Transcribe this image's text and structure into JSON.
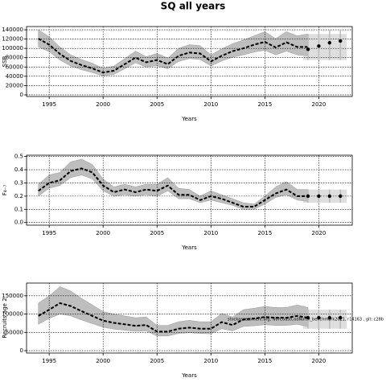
{
  "title": "SQ all years",
  "chart_data": [
    {
      "type": "line",
      "xlabel": "Years",
      "ylabel": "SSB",
      "xlim": [
        1992.9,
        2023.1
      ],
      "xticks": [
        1995,
        2000,
        2005,
        2010,
        2015,
        2020
      ],
      "ylim": [
        -3500,
        147000
      ],
      "yticks": [
        0,
        20000,
        40000,
        60000,
        80000,
        100000,
        120000,
        140000
      ],
      "grid": true,
      "color": "#000000",
      "band_color": "#bebebe",
      "x": [
        1994,
        1995,
        1996,
        1997,
        1998,
        1999,
        2000,
        2001,
        2002,
        2003,
        2004,
        2005,
        2006,
        2007,
        2008,
        2009,
        2010,
        2011,
        2012,
        2013,
        2014,
        2015,
        2016,
        2017,
        2018,
        2019
      ],
      "values": [
        121000,
        108000,
        88000,
        73000,
        64000,
        57000,
        48000,
        52000,
        66000,
        80000,
        70000,
        75000,
        66000,
        84000,
        91000,
        89000,
        72000,
        84000,
        94000,
        100000,
        108000,
        114000,
        102000,
        113000,
        103000,
        103000
      ],
      "lower": [
        103000,
        93000,
        75000,
        62000,
        54000,
        48000,
        41000,
        44000,
        56000,
        69000,
        60000,
        63000,
        56000,
        72000,
        78000,
        76000,
        62000,
        73000,
        81000,
        86000,
        92000,
        96000,
        86000,
        94000,
        86000,
        84000
      ],
      "upper": [
        140000,
        125000,
        103000,
        86000,
        76000,
        68000,
        57000,
        62000,
        78000,
        94000,
        82000,
        89000,
        79000,
        100000,
        108000,
        106000,
        86000,
        99000,
        110000,
        118000,
        127000,
        136000,
        121000,
        136000,
        127000,
        131000
      ],
      "forecast_x": [
        2019,
        2020,
        2021,
        2022
      ],
      "forecast_values": [
        98000,
        105000,
        112000,
        116000
      ],
      "forecast_lower": [
        75000,
        75000,
        75000,
        75000
      ],
      "forecast_upper": [
        131000,
        138000,
        140000,
        140000
      ]
    },
    {
      "type": "line",
      "xlabel": "Years",
      "ylabel": "F₄₋₇",
      "xlim": [
        1992.9,
        2023.1
      ],
      "xticks": [
        1995,
        2000,
        2005,
        2010,
        2015,
        2020
      ],
      "ylim": [
        -0.02,
        0.51
      ],
      "yticks": [
        {
          "value": 0,
          "label": "0.0"
        },
        0.1,
        0.2,
        0.3,
        0.4,
        0.5
      ],
      "grid": true,
      "color": "#000000",
      "band_color": "#bebebe",
      "x": [
        1994,
        1995,
        1996,
        1997,
        1998,
        1999,
        2000,
        2001,
        2002,
        2003,
        2004,
        2005,
        2006,
        2007,
        2008,
        2009,
        2010,
        2011,
        2012,
        2013,
        2014,
        2015,
        2016,
        2017,
        2018,
        2019
      ],
      "values": [
        0.24,
        0.3,
        0.32,
        0.39,
        0.41,
        0.38,
        0.28,
        0.23,
        0.25,
        0.23,
        0.25,
        0.24,
        0.28,
        0.21,
        0.21,
        0.17,
        0.2,
        0.18,
        0.15,
        0.12,
        0.12,
        0.17,
        0.22,
        0.25,
        0.2,
        0.2
      ],
      "lower": [
        0.2,
        0.26,
        0.28,
        0.34,
        0.36,
        0.33,
        0.24,
        0.2,
        0.21,
        0.2,
        0.21,
        0.2,
        0.24,
        0.18,
        0.18,
        0.15,
        0.17,
        0.15,
        0.13,
        0.1,
        0.1,
        0.14,
        0.19,
        0.21,
        0.17,
        0.16
      ],
      "upper": [
        0.29,
        0.36,
        0.38,
        0.46,
        0.48,
        0.44,
        0.33,
        0.27,
        0.29,
        0.27,
        0.29,
        0.29,
        0.34,
        0.26,
        0.25,
        0.2,
        0.24,
        0.21,
        0.18,
        0.15,
        0.14,
        0.2,
        0.27,
        0.31,
        0.25,
        0.25
      ],
      "forecast_x": [
        2019,
        2020,
        2021,
        2022
      ],
      "forecast_values": [
        0.2,
        0.2,
        0.2,
        0.2
      ],
      "forecast_lower": [
        0.15,
        0.15,
        0.15,
        0.15
      ],
      "forecast_upper": [
        0.25,
        0.25,
        0.25,
        0.25
      ]
    },
    {
      "type": "line",
      "xlabel": "Years",
      "ylabel": "Recruits age 2",
      "annotation": "stockassessment.org, NorCoastCodNorth_benchmark2021, r14163 , git: c28b",
      "xlim": [
        1992.9,
        2023.1
      ],
      "xticks": [
        1995,
        2000,
        2005,
        2010,
        2015,
        2020
      ],
      "ylim": [
        -6500,
        184800
      ],
      "yticks": [
        0,
        50000,
        100000,
        150000
      ],
      "grid": true,
      "color": "#000000",
      "band_color": "#bebebe",
      "x": [
        1994,
        1995,
        1996,
        1997,
        1998,
        1999,
        2000,
        2001,
        2002,
        2003,
        2004,
        2005,
        2006,
        2007,
        2008,
        2009,
        2010,
        2011,
        2012,
        2013,
        2014,
        2015,
        2016,
        2017,
        2018,
        2019
      ],
      "values": [
        95000,
        112000,
        130000,
        122000,
        108000,
        95000,
        82000,
        76000,
        72000,
        68000,
        70000,
        52000,
        52000,
        60000,
        63000,
        60000,
        60000,
        78000,
        70000,
        85000,
        88000,
        92000,
        90000,
        90000,
        95000,
        90000
      ],
      "lower": [
        72000,
        88000,
        100000,
        95000,
        84000,
        74000,
        64000,
        59000,
        56000,
        53000,
        54000,
        40000,
        40000,
        47000,
        49000,
        47000,
        46000,
        60000,
        54000,
        66000,
        68000,
        71000,
        69000,
        69000,
        72000,
        66000
      ],
      "upper": [
        130000,
        150000,
        175000,
        163000,
        143000,
        125000,
        107000,
        100000,
        95000,
        90000,
        92000,
        69000,
        69000,
        79000,
        83000,
        79000,
        79000,
        102000,
        92000,
        112000,
        116000,
        121000,
        118000,
        118000,
        125000,
        118000
      ],
      "forecast_x": [
        2019,
        2020,
        2021,
        2022
      ],
      "forecast_values": [
        90000,
        90000,
        90000,
        90000
      ],
      "forecast_lower": [
        60000,
        60000,
        60000,
        60000
      ],
      "forecast_upper": [
        112000,
        112000,
        112000,
        112000
      ]
    }
  ]
}
